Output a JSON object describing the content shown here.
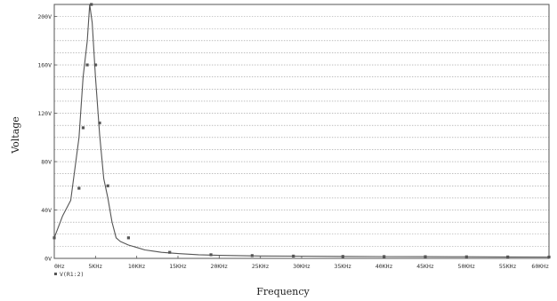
{
  "chart_data": {
    "type": "line",
    "title": "",
    "xlabel": "Frequency",
    "ylabel": "Voltage",
    "xlim": [
      0,
      60000
    ],
    "ylim": [
      0,
      210
    ],
    "x_ticks": [
      {
        "value": 0,
        "label": "0Hz"
      },
      {
        "value": 5000,
        "label": "5KHz"
      },
      {
        "value": 10000,
        "label": "10KHz"
      },
      {
        "value": 15000,
        "label": "15KHz"
      },
      {
        "value": 20000,
        "label": "20KHz"
      },
      {
        "value": 25000,
        "label": "25KHz"
      },
      {
        "value": 30000,
        "label": "30KHz"
      },
      {
        "value": 35000,
        "label": "35KHz"
      },
      {
        "value": 40000,
        "label": "40KHz"
      },
      {
        "value": 45000,
        "label": "45KHz"
      },
      {
        "value": 50000,
        "label": "50KHz"
      },
      {
        "value": 55000,
        "label": "55KHz"
      },
      {
        "value": 60000,
        "label": "60KHz"
      }
    ],
    "y_ticks": [
      {
        "value": 0,
        "label": "0V"
      },
      {
        "value": 40,
        "label": "40V"
      },
      {
        "value": 80,
        "label": "80V"
      },
      {
        "value": 120,
        "label": "120V"
      },
      {
        "value": 160,
        "label": "160V"
      },
      {
        "value": 200,
        "label": "200V"
      }
    ],
    "y_grid_step": 10,
    "grid": true,
    "legend": "bottom-left",
    "series": [
      {
        "name": "V(R1:2)",
        "color": "#555555",
        "marker": "square",
        "x": [
          0,
          1000,
          2000,
          3000,
          3500,
          4000,
          4300,
          4600,
          5000,
          5500,
          6000,
          6500,
          7000,
          7500,
          8000,
          9000,
          10000,
          11000,
          12000,
          13000,
          15000,
          17500,
          20000,
          25000,
          30000,
          35000,
          40000,
          45000,
          50000,
          55000,
          60000
        ],
        "y": [
          17,
          35,
          48,
          100,
          150,
          180,
          210,
          195,
          150,
          102,
          66,
          50,
          30,
          17,
          14,
          11,
          9,
          7,
          6,
          5,
          4,
          3,
          2.5,
          2,
          1.8,
          1.6,
          1.5,
          1.4,
          1.3,
          1.2,
          1.1
        ],
        "markers_x": [
          0,
          3000,
          3500,
          4000,
          4500,
          5000,
          5500,
          6500,
          9000,
          14000,
          19000,
          24000,
          29000,
          35000,
          40000,
          45000,
          50000,
          55000,
          60000
        ],
        "markers_y": [
          17,
          58,
          108,
          160,
          210,
          160,
          112,
          60,
          17,
          5,
          3,
          2.3,
          1.9,
          1.6,
          1.5,
          1.4,
          1.3,
          1.2,
          1.1
        ]
      }
    ]
  }
}
